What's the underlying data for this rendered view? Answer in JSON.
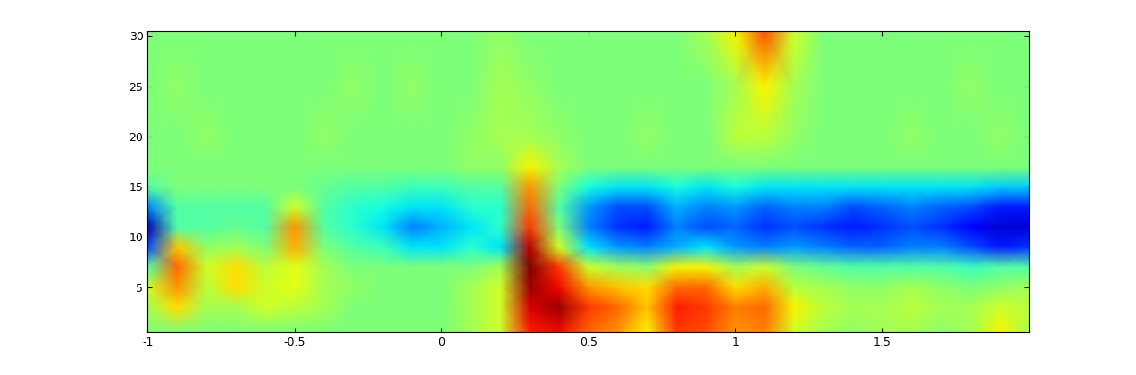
{
  "chart_data": {
    "type": "heatmap",
    "x": [
      -1,
      -0.9,
      -0.8,
      -0.7,
      -0.6,
      -0.5,
      -0.4,
      -0.3,
      -0.2,
      -0.1,
      0,
      0.1,
      0.2,
      0.3,
      0.4,
      0.5,
      0.6,
      0.7,
      0.8,
      0.9,
      1,
      1.1,
      1.2,
      1.3,
      1.4,
      1.5,
      1.6,
      1.7,
      1.8,
      1.9,
      2
    ],
    "y": [
      0.5,
      3,
      5,
      7,
      9,
      11,
      13,
      15,
      17,
      20,
      25,
      30.5
    ],
    "cells": [
      [
        0,
        0,
        0,
        0,
        0,
        0,
        0,
        0,
        0,
        0,
        0,
        0.1,
        0.2,
        0.75,
        0.8,
        0.6,
        0.5,
        0.3,
        0.7,
        0.65,
        0.5,
        0.55,
        0.2,
        0.1,
        0.05,
        0.1,
        0.1,
        0.05,
        0.1,
        0.3,
        0.1
      ],
      [
        0.1,
        0.35,
        0.1,
        0.1,
        0.2,
        0.15,
        0.1,
        0,
        0,
        0,
        0,
        0.1,
        0.2,
        0.85,
        0.95,
        0.7,
        0.6,
        0.4,
        0.75,
        0.7,
        0.55,
        0.6,
        0.3,
        0.15,
        0.1,
        0.1,
        0.15,
        0.1,
        0.1,
        0.2,
        0.15
      ],
      [
        0.2,
        0.5,
        0.15,
        0.35,
        0.2,
        0.25,
        0.1,
        0.05,
        0,
        0,
        0,
        0.1,
        0.2,
        0.95,
        0.8,
        0.5,
        0.4,
        0.35,
        0.6,
        0.6,
        0.35,
        0.45,
        0.15,
        0.1,
        0.05,
        0.05,
        0.1,
        0.05,
        0,
        0.05,
        0.1
      ],
      [
        -0.1,
        0.6,
        0.2,
        0.35,
        0.15,
        0.25,
        0.1,
        0,
        0,
        0,
        0,
        0,
        0.1,
        1.0,
        0.7,
        0.2,
        0.1,
        0.05,
        0.3,
        0.3,
        0.1,
        0.2,
        0,
        -0.05,
        -0.1,
        -0.1,
        -0.1,
        -0.1,
        -0.15,
        -0.1,
        -0.1
      ],
      [
        -0.6,
        0.4,
        0.05,
        0.1,
        0,
        0.45,
        0,
        -0.1,
        -0.15,
        -0.3,
        -0.3,
        -0.2,
        -0.3,
        0.9,
        0.2,
        -0.3,
        -0.45,
        -0.5,
        -0.4,
        -0.3,
        -0.45,
        -0.5,
        -0.45,
        -0.5,
        -0.55,
        -0.55,
        -0.5,
        -0.5,
        -0.6,
        -0.7,
        -0.65
      ],
      [
        -0.9,
        -0.1,
        -0.1,
        -0.05,
        -0.1,
        0.5,
        -0.1,
        -0.2,
        -0.3,
        -0.5,
        -0.4,
        -0.3,
        -0.2,
        0.7,
        0,
        -0.5,
        -0.65,
        -0.7,
        -0.5,
        -0.6,
        -0.55,
        -0.65,
        -0.6,
        -0.65,
        -0.7,
        -0.65,
        -0.6,
        -0.65,
        -0.75,
        -0.85,
        -0.85
      ],
      [
        -0.5,
        -0.1,
        -0.1,
        -0.1,
        -0.1,
        0.2,
        -0.1,
        -0.2,
        -0.25,
        -0.3,
        -0.3,
        -0.2,
        -0.2,
        0.6,
        -0.1,
        -0.45,
        -0.6,
        -0.6,
        -0.4,
        -0.5,
        -0.45,
        -0.55,
        -0.5,
        -0.5,
        -0.6,
        -0.55,
        -0.5,
        -0.55,
        -0.6,
        -0.7,
        -0.7
      ],
      [
        -0.1,
        0,
        0,
        0,
        0,
        0,
        -0.05,
        -0.1,
        -0.1,
        -0.15,
        -0.15,
        -0.1,
        -0.1,
        0.5,
        0,
        -0.25,
        -0.3,
        -0.3,
        -0.25,
        -0.3,
        -0.25,
        -0.3,
        -0.3,
        -0.3,
        -0.3,
        -0.3,
        -0.3,
        -0.3,
        -0.3,
        -0.35,
        -0.35
      ],
      [
        0,
        0,
        0,
        0,
        0,
        0,
        0,
        0,
        0,
        0,
        0,
        0.05,
        0.05,
        0.3,
        0.1,
        0,
        0,
        0,
        0,
        0,
        0,
        0,
        0,
        0,
        0,
        0,
        0,
        0,
        0,
        0,
        0
      ],
      [
        0,
        0,
        0.05,
        0,
        0,
        0,
        0.05,
        0,
        0,
        0,
        0,
        0.05,
        0.1,
        0.1,
        0.05,
        0,
        0,
        0.05,
        0,
        0,
        0.15,
        0.15,
        0.05,
        0,
        0,
        0,
        0.05,
        0,
        0,
        0.05,
        0
      ],
      [
        0,
        0.05,
        0,
        0,
        0,
        0,
        0,
        0.05,
        0,
        0.05,
        0,
        0,
        0.1,
        0.05,
        0,
        0,
        0,
        0,
        0,
        0,
        0.1,
        0.3,
        0.1,
        0,
        0,
        0,
        0,
        0,
        0.05,
        0,
        0
      ],
      [
        0,
        0,
        0,
        0,
        0,
        0,
        0,
        0,
        0,
        0,
        0,
        0,
        0.05,
        0,
        0,
        0,
        0,
        0,
        0,
        0.1,
        0.3,
        0.65,
        0.2,
        0,
        0,
        0,
        0,
        0,
        0,
        0,
        0
      ]
    ],
    "color_range": [
      -1,
      1
    ],
    "xlim": [
      -1,
      2
    ],
    "ylim": [
      0.5,
      30.5
    ],
    "xticks": [
      -1,
      -0.5,
      0,
      0.5,
      1,
      1.5
    ],
    "yticks": [
      5,
      10,
      15,
      20,
      25,
      30
    ]
  }
}
